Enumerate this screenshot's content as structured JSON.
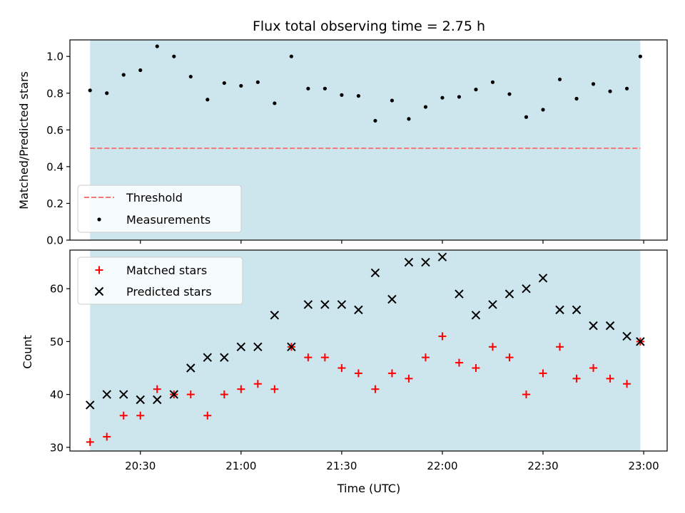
{
  "colors": {
    "shade": "#cde6ee",
    "threshold": "#f07878",
    "measurement": "#000000",
    "matched": "#ff0000",
    "predicted": "#000000",
    "frame": "#000000"
  },
  "chart_data": [
    {
      "type": "scatter",
      "title": "Flux total observing time = 2.75 h",
      "xlabel": "",
      "ylabel": "Matched/Predicted stars",
      "x_range": [
        "20:09",
        "23:07"
      ],
      "ylim": [
        0.0,
        1.09
      ],
      "yticks": [
        0.0,
        0.2,
        0.4,
        0.6,
        0.8,
        1.0
      ],
      "ytick_labels": [
        "0.0",
        "0.2",
        "0.4",
        "0.6",
        "0.8",
        "1.0"
      ],
      "shaded_span": [
        "20:15",
        "22:59"
      ],
      "threshold": {
        "name": "Threshold",
        "value": 0.5,
        "x": [
          "20:15",
          "22:59"
        ]
      },
      "legend": {
        "position": "lower-left",
        "entries": [
          "Threshold",
          "Measurements"
        ]
      },
      "series": [
        {
          "name": "Measurements",
          "marker": "dot",
          "x": [
            "20:15",
            "20:20",
            "20:25",
            "20:30",
            "20:35",
            "20:40",
            "20:45",
            "20:50",
            "20:55",
            "21:00",
            "21:05",
            "21:10",
            "21:15",
            "21:20",
            "21:25",
            "21:30",
            "21:35",
            "21:40",
            "21:45",
            "21:50",
            "21:55",
            "22:00",
            "22:05",
            "22:10",
            "22:15",
            "22:20",
            "22:25",
            "22:30",
            "22:35",
            "22:40",
            "22:45",
            "22:50",
            "22:55",
            "22:59"
          ],
          "y": [
            0.815,
            0.8,
            0.9,
            0.925,
            1.055,
            1.0,
            0.89,
            0.765,
            0.855,
            0.84,
            0.86,
            0.745,
            1.0,
            0.825,
            0.825,
            0.79,
            0.785,
            0.65,
            0.76,
            0.66,
            0.725,
            0.775,
            0.78,
            0.82,
            0.86,
            0.795,
            0.67,
            0.71,
            0.875,
            0.77,
            0.85,
            0.81,
            0.825,
            1.0
          ]
        }
      ]
    },
    {
      "type": "scatter",
      "title": "",
      "xlabel": "Time (UTC)",
      "ylabel": "Count",
      "x_range": [
        "20:09",
        "23:07"
      ],
      "xticks": [
        "20:30",
        "21:00",
        "21:30",
        "22:00",
        "22:30",
        "23:00"
      ],
      "ylim": [
        29.3,
        67.3
      ],
      "yticks": [
        30,
        40,
        50,
        60
      ],
      "ytick_labels": [
        "30",
        "40",
        "50",
        "60"
      ],
      "shaded_span": [
        "20:15",
        "22:59"
      ],
      "legend": {
        "position": "upper-left",
        "entries": [
          "Matched stars",
          "Predicted stars"
        ]
      },
      "series": [
        {
          "name": "Matched stars",
          "marker": "plus",
          "x": [
            "20:15",
            "20:20",
            "20:25",
            "20:30",
            "20:35",
            "20:40",
            "20:45",
            "20:50",
            "20:55",
            "21:00",
            "21:05",
            "21:10",
            "21:15",
            "21:20",
            "21:25",
            "21:30",
            "21:35",
            "21:40",
            "21:45",
            "21:50",
            "21:55",
            "22:00",
            "22:05",
            "22:10",
            "22:15",
            "22:20",
            "22:25",
            "22:30",
            "22:35",
            "22:40",
            "22:45",
            "22:50",
            "22:55",
            "22:59"
          ],
          "y": [
            31,
            32,
            36,
            36,
            41,
            40,
            40,
            36,
            40,
            41,
            42,
            41,
            49,
            47,
            47,
            45,
            44,
            41,
            44,
            43,
            47,
            51,
            46,
            45,
            49,
            47,
            40,
            44,
            49,
            43,
            45,
            43,
            42,
            50
          ]
        },
        {
          "name": "Predicted stars",
          "marker": "x",
          "x": [
            "20:15",
            "20:20",
            "20:25",
            "20:30",
            "20:35",
            "20:40",
            "20:45",
            "20:50",
            "20:55",
            "21:00",
            "21:05",
            "21:10",
            "21:15",
            "21:20",
            "21:25",
            "21:30",
            "21:35",
            "21:40",
            "21:45",
            "21:50",
            "21:55",
            "22:00",
            "22:05",
            "22:10",
            "22:15",
            "22:20",
            "22:25",
            "22:30",
            "22:35",
            "22:40",
            "22:45",
            "22:50",
            "22:55",
            "22:59"
          ],
          "y": [
            38,
            40,
            40,
            39,
            39,
            40,
            45,
            47,
            47,
            49,
            49,
            55,
            49,
            57,
            57,
            57,
            56,
            63,
            58,
            65,
            65,
            66,
            59,
            55,
            57,
            59,
            60,
            62,
            56,
            56,
            53,
            53,
            51,
            50
          ]
        }
      ]
    }
  ]
}
